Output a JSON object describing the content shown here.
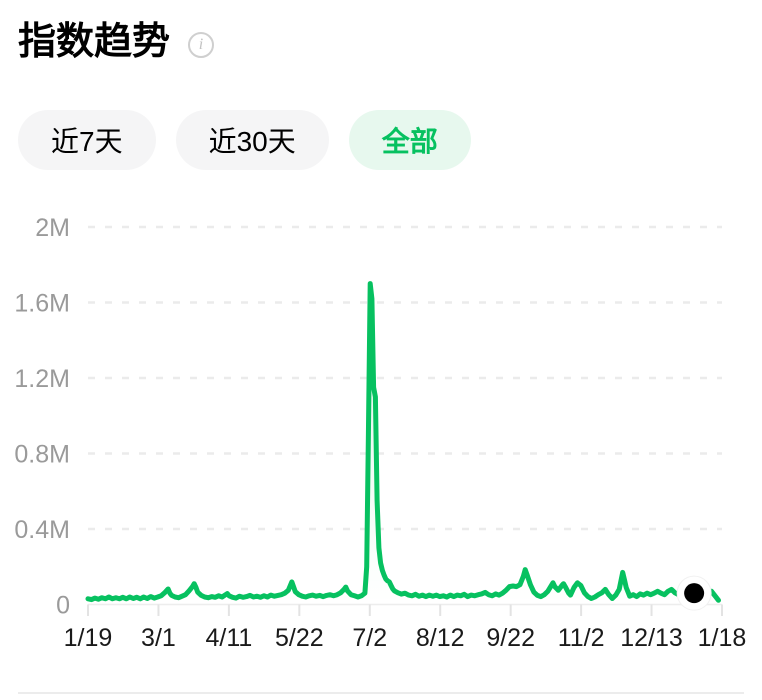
{
  "header": {
    "title": "指数趋势",
    "info_glyph": "i"
  },
  "filters": [
    {
      "label": "近7天",
      "active": false
    },
    {
      "label": "近30天",
      "active": false
    },
    {
      "label": "全部",
      "active": true
    }
  ],
  "colors": {
    "accent": "#07C160",
    "accent_bg": "#e7f8ee",
    "pill_bg": "#f5f5f6",
    "grid": "#ebebeb",
    "baseline": "#ededed",
    "tick": "#e3e3e3",
    "y_label": "#9a9a9a",
    "x_label": "#1a1a1a",
    "marker_dot": "#000000",
    "marker_halo": "#ffffff"
  },
  "chart_data": {
    "type": "line",
    "title": "指数趋势",
    "legend": "none",
    "grid": "dashed-horizontal",
    "x_labels": [
      "1/19",
      "3/1",
      "4/11",
      "5/22",
      "7/2",
      "8/12",
      "9/22",
      "11/2",
      "12/13",
      "1/18"
    ],
    "x_range_days": 364,
    "ylim": [
      0,
      2000000
    ],
    "y_ticks": [
      {
        "value": 0,
        "label": "0"
      },
      {
        "value": 400000,
        "label": "0.4M"
      },
      {
        "value": 800000,
        "label": "0.8M"
      },
      {
        "value": 1200000,
        "label": "1.2M"
      },
      {
        "value": 1600000,
        "label": "1.6M"
      },
      {
        "value": 2000000,
        "label": "2M"
      }
    ],
    "series": [
      {
        "name": "指数趋势",
        "color": "#07C160",
        "points_day_value": [
          [
            0,
            30000
          ],
          [
            2,
            26000
          ],
          [
            4,
            34000
          ],
          [
            6,
            28000
          ],
          [
            8,
            36000
          ],
          [
            10,
            30000
          ],
          [
            12,
            40000
          ],
          [
            14,
            30000
          ],
          [
            16,
            36000
          ],
          [
            18,
            30000
          ],
          [
            20,
            38000
          ],
          [
            22,
            30000
          ],
          [
            24,
            40000
          ],
          [
            26,
            32000
          ],
          [
            28,
            38000
          ],
          [
            30,
            30000
          ],
          [
            32,
            40000
          ],
          [
            34,
            32000
          ],
          [
            36,
            42000
          ],
          [
            38,
            34000
          ],
          [
            40,
            40000
          ],
          [
            42,
            46000
          ],
          [
            44,
            62000
          ],
          [
            46,
            82000
          ],
          [
            47,
            60000
          ],
          [
            48,
            48000
          ],
          [
            50,
            40000
          ],
          [
            52,
            36000
          ],
          [
            54,
            44000
          ],
          [
            56,
            52000
          ],
          [
            58,
            72000
          ],
          [
            60,
            95000
          ],
          [
            61,
            110000
          ],
          [
            62,
            90000
          ],
          [
            63,
            65000
          ],
          [
            65,
            48000
          ],
          [
            67,
            40000
          ],
          [
            69,
            36000
          ],
          [
            71,
            42000
          ],
          [
            73,
            38000
          ],
          [
            75,
            46000
          ],
          [
            77,
            40000
          ],
          [
            79,
            52000
          ],
          [
            80,
            58000
          ],
          [
            81,
            46000
          ],
          [
            83,
            38000
          ],
          [
            85,
            34000
          ],
          [
            87,
            44000
          ],
          [
            89,
            38000
          ],
          [
            91,
            42000
          ],
          [
            93,
            48000
          ],
          [
            95,
            40000
          ],
          [
            97,
            44000
          ],
          [
            99,
            38000
          ],
          [
            101,
            46000
          ],
          [
            103,
            40000
          ],
          [
            105,
            50000
          ],
          [
            107,
            44000
          ],
          [
            109,
            48000
          ],
          [
            111,
            52000
          ],
          [
            113,
            60000
          ],
          [
            115,
            75000
          ],
          [
            117,
            120000
          ],
          [
            118,
            95000
          ],
          [
            119,
            68000
          ],
          [
            121,
            52000
          ],
          [
            123,
            44000
          ],
          [
            125,
            40000
          ],
          [
            127,
            46000
          ],
          [
            129,
            50000
          ],
          [
            131,
            44000
          ],
          [
            133,
            48000
          ],
          [
            135,
            42000
          ],
          [
            137,
            48000
          ],
          [
            139,
            52000
          ],
          [
            141,
            46000
          ],
          [
            143,
            52000
          ],
          [
            145,
            62000
          ],
          [
            147,
            80000
          ],
          [
            148,
            92000
          ],
          [
            149,
            72000
          ],
          [
            151,
            52000
          ],
          [
            153,
            46000
          ],
          [
            155,
            40000
          ],
          [
            157,
            46000
          ],
          [
            159,
            60000
          ],
          [
            160,
            200000
          ],
          [
            161,
            900000
          ],
          [
            162,
            1700000
          ],
          [
            163,
            1620000
          ],
          [
            164,
            1150000
          ],
          [
            165,
            1100000
          ],
          [
            166,
            550000
          ],
          [
            167,
            300000
          ],
          [
            168,
            220000
          ],
          [
            169,
            180000
          ],
          [
            170,
            155000
          ],
          [
            171,
            135000
          ],
          [
            172,
            125000
          ],
          [
            173,
            120000
          ],
          [
            174,
            100000
          ],
          [
            175,
            82000
          ],
          [
            176,
            72000
          ],
          [
            178,
            62000
          ],
          [
            180,
            55000
          ],
          [
            182,
            60000
          ],
          [
            184,
            50000
          ],
          [
            186,
            46000
          ],
          [
            188,
            54000
          ],
          [
            190,
            44000
          ],
          [
            192,
            50000
          ],
          [
            194,
            42000
          ],
          [
            196,
            50000
          ],
          [
            198,
            44000
          ],
          [
            200,
            50000
          ],
          [
            202,
            42000
          ],
          [
            204,
            46000
          ],
          [
            206,
            40000
          ],
          [
            208,
            50000
          ],
          [
            210,
            42000
          ],
          [
            212,
            50000
          ],
          [
            214,
            46000
          ],
          [
            216,
            54000
          ],
          [
            218,
            42000
          ],
          [
            220,
            50000
          ],
          [
            222,
            46000
          ],
          [
            224,
            52000
          ],
          [
            226,
            56000
          ],
          [
            228,
            64000
          ],
          [
            230,
            52000
          ],
          [
            232,
            46000
          ],
          [
            234,
            56000
          ],
          [
            236,
            50000
          ],
          [
            238,
            60000
          ],
          [
            240,
            75000
          ],
          [
            242,
            95000
          ],
          [
            244,
            98000
          ],
          [
            246,
            95000
          ],
          [
            248,
            105000
          ],
          [
            250,
            150000
          ],
          [
            251,
            185000
          ],
          [
            252,
            160000
          ],
          [
            254,
            105000
          ],
          [
            256,
            65000
          ],
          [
            258,
            48000
          ],
          [
            260,
            42000
          ],
          [
            262,
            52000
          ],
          [
            264,
            70000
          ],
          [
            266,
            100000
          ],
          [
            267,
            115000
          ],
          [
            268,
            95000
          ],
          [
            270,
            75000
          ],
          [
            272,
            100000
          ],
          [
            273,
            110000
          ],
          [
            274,
            95000
          ],
          [
            276,
            60000
          ],
          [
            277,
            50000
          ],
          [
            279,
            90000
          ],
          [
            281,
            115000
          ],
          [
            283,
            100000
          ],
          [
            285,
            62000
          ],
          [
            287,
            42000
          ],
          [
            289,
            32000
          ],
          [
            291,
            40000
          ],
          [
            293,
            52000
          ],
          [
            295,
            62000
          ],
          [
            297,
            80000
          ],
          [
            299,
            52000
          ],
          [
            301,
            32000
          ],
          [
            303,
            50000
          ],
          [
            305,
            80000
          ],
          [
            307,
            170000
          ],
          [
            308,
            130000
          ],
          [
            309,
            90000
          ],
          [
            311,
            44000
          ],
          [
            313,
            52000
          ],
          [
            315,
            42000
          ],
          [
            317,
            56000
          ],
          [
            319,
            50000
          ],
          [
            321,
            60000
          ],
          [
            323,
            52000
          ],
          [
            325,
            60000
          ],
          [
            327,
            70000
          ],
          [
            329,
            60000
          ],
          [
            331,
            52000
          ],
          [
            333,
            70000
          ],
          [
            335,
            80000
          ],
          [
            337,
            62000
          ],
          [
            339,
            52000
          ],
          [
            341,
            46000
          ],
          [
            343,
            52000
          ],
          [
            345,
            56000
          ],
          [
            348,
            60000
          ],
          [
            350,
            42000
          ],
          [
            352,
            32000
          ],
          [
            354,
            32000
          ],
          [
            356,
            52000
          ],
          [
            358,
            70000
          ],
          [
            360,
            46000
          ],
          [
            362,
            22000
          ]
        ]
      }
    ],
    "marker": {
      "day": 348,
      "value": 60000
    }
  }
}
